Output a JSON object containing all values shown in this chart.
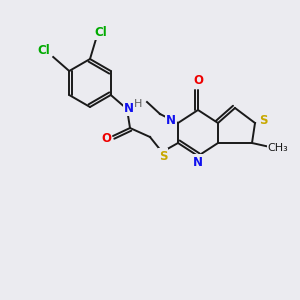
{
  "bg_color": "#ebebf0",
  "bond_color": "#1a1a1a",
  "colors": {
    "N": "#1010ee",
    "S": "#c8a800",
    "O": "#ee0000",
    "Cl": "#00aa00",
    "H": "#606060",
    "C": "#1a1a1a"
  },
  "line_width": 1.4,
  "fig_size": [
    3.0,
    3.0
  ],
  "dpi": 100
}
